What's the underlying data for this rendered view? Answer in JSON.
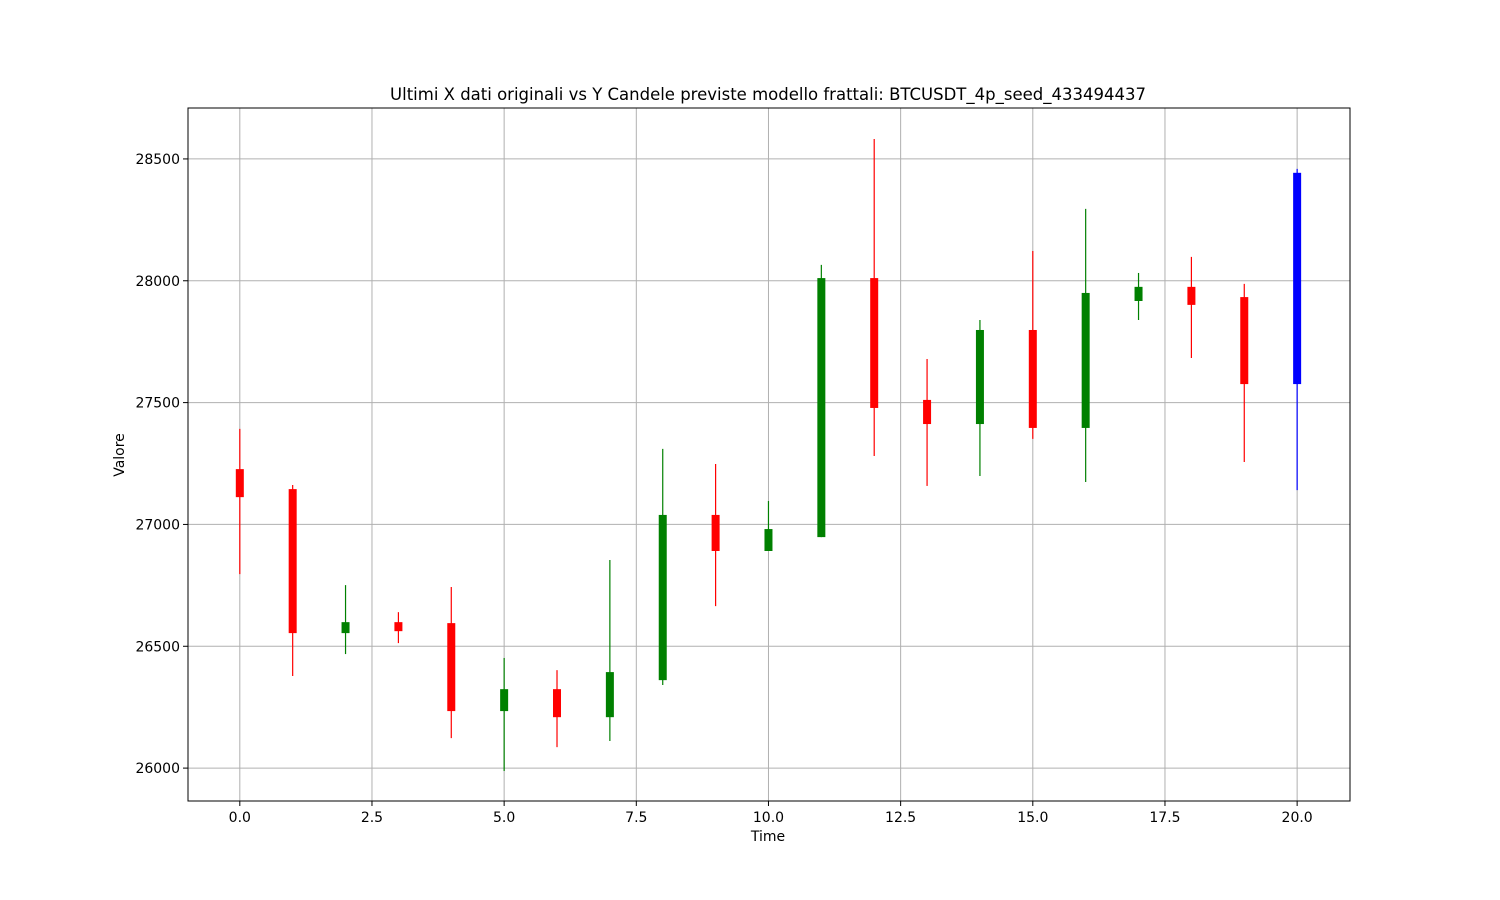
{
  "chart_data": {
    "type": "candlestick",
    "title": "Ultimi X dati originali vs Y Candele previste modello frattali: BTCUSDT_4p_seed_433494437",
    "xlabel": "Time",
    "ylabel": "Valore",
    "x": [
      0,
      1,
      2,
      3,
      4,
      5,
      6,
      7,
      8,
      9,
      10,
      11,
      12,
      13,
      14,
      15,
      16,
      17,
      18,
      19,
      20
    ],
    "open": [
      27227,
      27145,
      26554,
      26599,
      26595,
      26234,
      26324,
      26209,
      26361,
      27039,
      26891,
      26948,
      28011,
      27511,
      27412,
      27798,
      27396,
      27917,
      27975,
      27933,
      27576
    ],
    "high": [
      27392,
      27162,
      26751,
      26640,
      26743,
      26452,
      26402,
      26854,
      27310,
      27248,
      27096,
      28065,
      28582,
      27679,
      27839,
      28122,
      28295,
      28032,
      28098,
      27987,
      28459
    ],
    "low": [
      26796,
      26378,
      26468,
      26513,
      26123,
      25988,
      26086,
      26111,
      26341,
      26665,
      26891,
      26948,
      27281,
      27158,
      27199,
      27351,
      27174,
      27839,
      27683,
      27256,
      27141
    ],
    "close": [
      27112,
      26554,
      26599,
      26562,
      26234,
      26324,
      26209,
      26394,
      27039,
      26891,
      26981,
      28011,
      27478,
      27412,
      27798,
      27396,
      27950,
      27975,
      27901,
      27576,
      28443
    ],
    "colors": [
      "#ff0000",
      "#ff0000",
      "#008000",
      "#ff0000",
      "#ff0000",
      "#008000",
      "#ff0000",
      "#008000",
      "#008000",
      "#ff0000",
      "#008000",
      "#008000",
      "#ff0000",
      "#ff0000",
      "#008000",
      "#ff0000",
      "#008000",
      "#008000",
      "#ff0000",
      "#ff0000",
      "#0000ff"
    ],
    "xlim": [
      -0.98,
      21.0
    ],
    "ylim": [
      25865,
      28709
    ],
    "xticks": [
      {
        "value": 0,
        "label": "0.0"
      },
      {
        "value": 2.5,
        "label": "2.5"
      },
      {
        "value": 5,
        "label": "5.0"
      },
      {
        "value": 7.5,
        "label": "7.5"
      },
      {
        "value": 10,
        "label": "10.0"
      },
      {
        "value": 12.5,
        "label": "12.5"
      },
      {
        "value": 15,
        "label": "15.0"
      },
      {
        "value": 17.5,
        "label": "17.5"
      },
      {
        "value": 20,
        "label": "20.0"
      }
    ],
    "yticks": [
      26000,
      26500,
      27000,
      27500,
      28000,
      28500
    ],
    "grid": true
  }
}
